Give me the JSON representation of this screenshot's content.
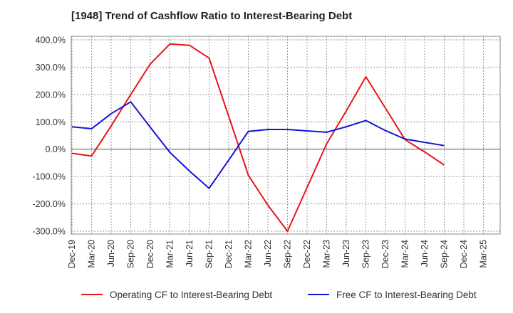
{
  "chart_data": {
    "type": "line",
    "title": "[1948]  Trend of Cashflow Ratio to Interest-Bearing Debt",
    "xlabel": "",
    "ylabel": "",
    "ylim": [
      -300,
      400
    ],
    "ytick_values": [
      400,
      300,
      200,
      100,
      0,
      -100,
      -200,
      -300
    ],
    "ytick_labels": [
      "400.0%",
      "300.0%",
      "200.0%",
      "100.0%",
      "0.0%",
      "-100.0%",
      "-200.0%",
      "-300.0%"
    ],
    "categories": [
      "Dec-19",
      "Mar-20",
      "Jun-20",
      "Sep-20",
      "Dec-20",
      "Mar-21",
      "Jun-21",
      "Sep-21",
      "Dec-21",
      "Mar-22",
      "Jun-22",
      "Sep-22",
      "Dec-22",
      "Mar-23",
      "Jun-23",
      "Sep-23",
      "Dec-23",
      "Mar-24",
      "Jun-24",
      "Sep-24",
      "Dec-24",
      "Mar-25"
    ],
    "grid": true,
    "legend_position": "bottom",
    "series": [
      {
        "name": "Operating CF to Interest-Bearing Debt",
        "color": "#e8141c",
        "values": [
          -15,
          -25,
          85,
          200,
          312,
          385,
          380,
          333,
          120,
          -95,
          -205,
          -300,
          -140,
          20,
          140,
          265,
          150,
          35,
          -10,
          -58,
          null,
          null
        ]
      },
      {
        "name": "Free CF to Interest-Bearing Debt",
        "color": "#1414d8",
        "values": [
          82,
          75,
          130,
          173,
          80,
          -12,
          -80,
          -143,
          -40,
          65,
          72,
          72,
          67,
          62,
          82,
          105,
          68,
          37,
          25,
          13,
          null,
          null
        ]
      }
    ]
  }
}
